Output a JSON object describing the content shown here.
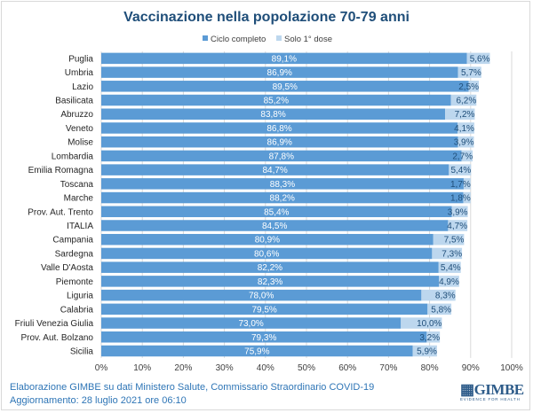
{
  "chart_data": {
    "type": "bar",
    "orientation": "horizontal",
    "stacked": true,
    "title": "Vaccinazione nella popolazione 70-79 anni",
    "categories": [
      "Puglia",
      "Umbria",
      "Lazio",
      "Basilicata",
      "Abruzzo",
      "Veneto",
      "Molise",
      "Lombardia",
      "Emilia Romagna",
      "Toscana",
      "Marche",
      "Prov. Aut. Trento",
      "ITALIA",
      "Campania",
      "Sardegna",
      "Valle D'Aosta",
      "Piemonte",
      "Liguria",
      "Calabria",
      "Friuli Venezia Giulia",
      "Prov. Aut. Bolzano",
      "Sicilia"
    ],
    "series": [
      {
        "name": "Ciclo completo",
        "color": "#5b9bd5",
        "values": [
          89.1,
          86.9,
          89.5,
          85.2,
          83.8,
          86.8,
          86.9,
          87.8,
          84.7,
          88.3,
          88.2,
          85.4,
          84.5,
          80.9,
          80.6,
          82.2,
          82.3,
          78.0,
          79.5,
          73.0,
          79.3,
          75.9
        ]
      },
      {
        "name": "Solo 1° dose",
        "color": "#bdd7ee",
        "values": [
          5.6,
          5.7,
          2.5,
          6.2,
          7.2,
          4.1,
          3.9,
          2.7,
          5.4,
          1.7,
          1.8,
          3.9,
          4.7,
          7.5,
          7.3,
          5.4,
          4.9,
          8.3,
          5.8,
          10.0,
          3.2,
          5.9
        ]
      }
    ],
    "xlim": [
      0,
      100
    ],
    "xticks": [
      "0%",
      "10%",
      "20%",
      "30%",
      "40%",
      "50%",
      "60%",
      "70%",
      "80%",
      "90%",
      "100%"
    ],
    "grid": true,
    "legend": "top"
  },
  "footer": {
    "source": "Elaborazione GIMBE su dati Ministero Salute, Commissario Straordinario COVID-19",
    "updated": "Aggiornamento: 28 luglio 2021 ore 06:10"
  },
  "logo": {
    "name": "GIMBE",
    "tagline": "EVIDENCE FOR HEALTH"
  }
}
